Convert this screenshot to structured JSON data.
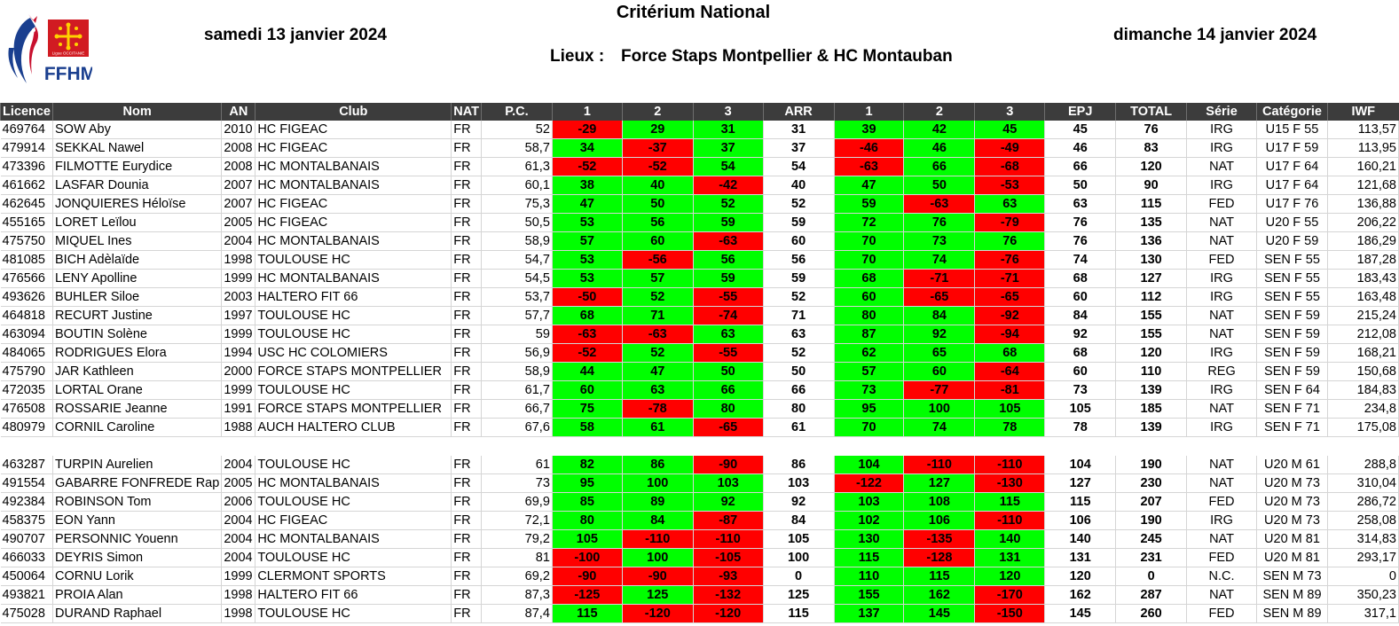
{
  "header": {
    "title": "Critérium National",
    "date_day1": "samedi 13 janvier 2024",
    "date_day2": "dimanche 14 janvier 2024",
    "lieux_label": "Lieux :",
    "lieux_value": "Force Staps Montpellier & HC Montauban",
    "logo_text": "FFHM",
    "logo_sub": "Ligue OCCITANIE"
  },
  "colors": {
    "success": "#00ff00",
    "fail": "#ff0000",
    "header_bg": "#3c3c3c"
  },
  "columns": [
    "Licence",
    "Nom",
    "AN",
    "Club",
    "NAT",
    "P.C.",
    "1",
    "2",
    "3",
    "ARR",
    "1",
    "2",
    "3",
    "EPJ",
    "TOTAL",
    "Série",
    "Catégorie",
    "IWF"
  ],
  "women": [
    {
      "lic": "469764",
      "nom": "SOW Aby",
      "an": "2010",
      "club": "HC FIGEAC",
      "nat": "FR",
      "pc": "52",
      "a1": "-29",
      "a2": "29",
      "a3": "31",
      "arr": "31",
      "e1": "39",
      "e2": "42",
      "e3": "45",
      "epj": "45",
      "total": "76",
      "serie": "IRG",
      "cat": "U15 F 55",
      "iwf": "113,57"
    },
    {
      "lic": "479914",
      "nom": "SEKKAL Nawel",
      "an": "2008",
      "club": "HC FIGEAC",
      "nat": "FR",
      "pc": "58,7",
      "a1": "34",
      "a2": "-37",
      "a3": "37",
      "arr": "37",
      "e1": "-46",
      "e2": "46",
      "e3": "-49",
      "epj": "46",
      "total": "83",
      "serie": "IRG",
      "cat": "U17 F 59",
      "iwf": "113,95"
    },
    {
      "lic": "473396",
      "nom": "FILMOTTE Eurydice",
      "an": "2008",
      "club": "HC MONTALBANAIS",
      "nat": "FR",
      "pc": "61,3",
      "a1": "-52",
      "a2": "-52",
      "a3": "54",
      "arr": "54",
      "e1": "-63",
      "e2": "66",
      "e3": "-68",
      "epj": "66",
      "total": "120",
      "serie": "NAT",
      "cat": "U17 F 64",
      "iwf": "160,21"
    },
    {
      "lic": "461662",
      "nom": "LASFAR Dounia",
      "an": "2007",
      "club": "HC MONTALBANAIS",
      "nat": "FR",
      "pc": "60,1",
      "a1": "38",
      "a2": "40",
      "a3": "-42",
      "arr": "40",
      "e1": "47",
      "e2": "50",
      "e3": "-53",
      "epj": "50",
      "total": "90",
      "serie": "IRG",
      "cat": "U17 F 64",
      "iwf": "121,68"
    },
    {
      "lic": "462645",
      "nom": "JONQUIERES Héloïse",
      "an": "2007",
      "club": "HC FIGEAC",
      "nat": "FR",
      "pc": "75,3",
      "a1": "47",
      "a2": "50",
      "a3": "52",
      "arr": "52",
      "e1": "59",
      "e2": "-63",
      "e3": "63",
      "epj": "63",
      "total": "115",
      "serie": "FED",
      "cat": "U17 F 76",
      "iwf": "136,88"
    },
    {
      "lic": "455165",
      "nom": "LORET Leïlou",
      "an": "2005",
      "club": "HC FIGEAC",
      "nat": "FR",
      "pc": "50,5",
      "a1": "53",
      "a2": "56",
      "a3": "59",
      "arr": "59",
      "e1": "72",
      "e2": "76",
      "e3": "-79",
      "epj": "76",
      "total": "135",
      "serie": "NAT",
      "cat": "U20 F 55",
      "iwf": "206,22"
    },
    {
      "lic": "475750",
      "nom": "MIQUEL Ines",
      "an": "2004",
      "club": "HC MONTALBANAIS",
      "nat": "FR",
      "pc": "58,9",
      "a1": "57",
      "a2": "60",
      "a3": "-63",
      "arr": "60",
      "e1": "70",
      "e2": "73",
      "e3": "76",
      "epj": "76",
      "total": "136",
      "serie": "NAT",
      "cat": "U20 F 59",
      "iwf": "186,29"
    },
    {
      "lic": "481085",
      "nom": "BICH Adèlaïde",
      "an": "1998",
      "club": "TOULOUSE HC",
      "nat": "FR",
      "pc": "54,7",
      "a1": "53",
      "a2": "-56",
      "a3": "56",
      "arr": "56",
      "e1": "70",
      "e2": "74",
      "e3": "-76",
      "epj": "74",
      "total": "130",
      "serie": "FED",
      "cat": "SEN F 55",
      "iwf": "187,28"
    },
    {
      "lic": "476566",
      "nom": "LENY Apolline",
      "an": "1999",
      "club": "HC MONTALBANAIS",
      "nat": "FR",
      "pc": "54,5",
      "a1": "53",
      "a2": "57",
      "a3": "59",
      "arr": "59",
      "e1": "68",
      "e2": "-71",
      "e3": "-71",
      "epj": "68",
      "total": "127",
      "serie": "IRG",
      "cat": "SEN F 55",
      "iwf": "183,43"
    },
    {
      "lic": "493626",
      "nom": "BUHLER Siloe",
      "an": "2003",
      "club": "HALTERO FIT 66",
      "nat": "FR",
      "pc": "53,7",
      "a1": "-50",
      "a2": "52",
      "a3": "-55",
      "arr": "52",
      "e1": "60",
      "e2": "-65",
      "e3": "-65",
      "epj": "60",
      "total": "112",
      "serie": "IRG",
      "cat": "SEN F 55",
      "iwf": "163,48"
    },
    {
      "lic": "464818",
      "nom": "RECURT Justine",
      "an": "1997",
      "club": "TOULOUSE HC",
      "nat": "FR",
      "pc": "57,7",
      "a1": "68",
      "a2": "71",
      "a3": "-74",
      "arr": "71",
      "e1": "80",
      "e2": "84",
      "e3": "-92",
      "epj": "84",
      "total": "155",
      "serie": "NAT",
      "cat": "SEN F 59",
      "iwf": "215,24"
    },
    {
      "lic": "463094",
      "nom": "BOUTIN Solène",
      "an": "1999",
      "club": "TOULOUSE HC",
      "nat": "FR",
      "pc": "59",
      "a1": "-63",
      "a2": "-63",
      "a3": "63",
      "arr": "63",
      "e1": "87",
      "e2": "92",
      "e3": "-94",
      "epj": "92",
      "total": "155",
      "serie": "NAT",
      "cat": "SEN F 59",
      "iwf": "212,08"
    },
    {
      "lic": "484065",
      "nom": "RODRIGUES Elora",
      "an": "1994",
      "club": "USC HC COLOMIERS",
      "nat": "FR",
      "pc": "56,9",
      "a1": "-52",
      "a2": "52",
      "a3": "-55",
      "arr": "52",
      "e1": "62",
      "e2": "65",
      "e3": "68",
      "epj": "68",
      "total": "120",
      "serie": "IRG",
      "cat": "SEN F 59",
      "iwf": "168,21"
    },
    {
      "lic": "475790",
      "nom": "JAR Kathleen",
      "an": "2000",
      "club": "FORCE STAPS MONTPELLIER",
      "nat": "FR",
      "pc": "58,9",
      "a1": "44",
      "a2": "47",
      "a3": "50",
      "arr": "50",
      "e1": "57",
      "e2": "60",
      "e3": "-64",
      "epj": "60",
      "total": "110",
      "serie": "REG",
      "cat": "SEN F 59",
      "iwf": "150,68"
    },
    {
      "lic": "472035",
      "nom": "LORTAL Orane",
      "an": "1999",
      "club": "TOULOUSE HC",
      "nat": "FR",
      "pc": "61,7",
      "a1": "60",
      "a2": "63",
      "a3": "66",
      "arr": "66",
      "e1": "73",
      "e2": "-77",
      "e3": "-81",
      "epj": "73",
      "total": "139",
      "serie": "IRG",
      "cat": "SEN F 64",
      "iwf": "184,83"
    },
    {
      "lic": "476508",
      "nom": "ROSSARIE Jeanne",
      "an": "1991",
      "club": "FORCE STAPS MONTPELLIER",
      "nat": "FR",
      "pc": "66,7",
      "a1": "75",
      "a2": "-78",
      "a3": "80",
      "arr": "80",
      "e1": "95",
      "e2": "100",
      "e3": "105",
      "epj": "105",
      "total": "185",
      "serie": "NAT",
      "cat": "SEN F 71",
      "iwf": "234,8"
    },
    {
      "lic": "480979",
      "nom": "CORNIL Caroline",
      "an": "1988",
      "club": "AUCH HALTERO CLUB",
      "nat": "FR",
      "pc": "67,6",
      "a1": "58",
      "a2": "61",
      "a3": "-65",
      "arr": "61",
      "e1": "70",
      "e2": "74",
      "e3": "78",
      "epj": "78",
      "total": "139",
      "serie": "IRG",
      "cat": "SEN F 71",
      "iwf": "175,08"
    }
  ],
  "men": [
    {
      "lic": "463287",
      "nom": "TURPIN Aurelien",
      "an": "2004",
      "club": "TOULOUSE HC",
      "nat": "FR",
      "pc": "61",
      "a1": "82",
      "a2": "86",
      "a3": "-90",
      "arr": "86",
      "e1": "104",
      "e2": "-110",
      "e3": "-110",
      "epj": "104",
      "total": "190",
      "serie": "NAT",
      "cat": "U20 M 61",
      "iwf": "288,8"
    },
    {
      "lic": "491554",
      "nom": "GABARRE FONFREDE Rap",
      "an": "2005",
      "club": "HC MONTALBANAIS",
      "nat": "FR",
      "pc": "73",
      "a1": "95",
      "a2": "100",
      "a3": "103",
      "arr": "103",
      "e1": "-122",
      "e2": "127",
      "e3": "-130",
      "epj": "127",
      "total": "230",
      "serie": "NAT",
      "cat": "U20 M 73",
      "iwf": "310,04"
    },
    {
      "lic": "492384",
      "nom": "ROBINSON Tom",
      "an": "2006",
      "club": "TOULOUSE HC",
      "nat": "FR",
      "pc": "69,9",
      "a1": "85",
      "a2": "89",
      "a3": "92",
      "arr": "92",
      "e1": "103",
      "e2": "108",
      "e3": "115",
      "epj": "115",
      "total": "207",
      "serie": "FED",
      "cat": "U20 M 73",
      "iwf": "286,72"
    },
    {
      "lic": "458375",
      "nom": "EON Yann",
      "an": "2004",
      "club": "HC FIGEAC",
      "nat": "FR",
      "pc": "72,1",
      "a1": "80",
      "a2": "84",
      "a3": "-87",
      "arr": "84",
      "e1": "102",
      "e2": "106",
      "e3": "-110",
      "epj": "106",
      "total": "190",
      "serie": "IRG",
      "cat": "U20 M 73",
      "iwf": "258,08"
    },
    {
      "lic": "490707",
      "nom": "PERSONNIC Youenn",
      "an": "2004",
      "club": "HC MONTALBANAIS",
      "nat": "FR",
      "pc": "79,2",
      "a1": "105",
      "a2": "-110",
      "a3": "-110",
      "arr": "105",
      "e1": "130",
      "e2": "-135",
      "e3": "140",
      "epj": "140",
      "total": "245",
      "serie": "NAT",
      "cat": "U20 M 81",
      "iwf": "314,83"
    },
    {
      "lic": "466033",
      "nom": "DEYRIS Simon",
      "an": "2004",
      "club": "TOULOUSE HC",
      "nat": "FR",
      "pc": "81",
      "a1": "-100",
      "a2": "100",
      "a3": "-105",
      "arr": "100",
      "e1": "115",
      "e2": "-128",
      "e3": "131",
      "epj": "131",
      "total": "231",
      "serie": "FED",
      "cat": "U20 M 81",
      "iwf": "293,17"
    },
    {
      "lic": "450064",
      "nom": "CORNU Lorik",
      "an": "1999",
      "club": "CLERMONT SPORTS",
      "nat": "FR",
      "pc": "69,2",
      "a1": "-90",
      "a2": "-90",
      "a3": "-93",
      "arr": "0",
      "e1": "110",
      "e2": "115",
      "e3": "120",
      "epj": "120",
      "total": "0",
      "serie": "N.C.",
      "cat": "SEN M 73",
      "iwf": "0"
    },
    {
      "lic": "493821",
      "nom": "PROIA Alan",
      "an": "1998",
      "club": "HALTERO FIT 66",
      "nat": "FR",
      "pc": "87,3",
      "a1": "-125",
      "a2": "125",
      "a3": "-132",
      "arr": "125",
      "e1": "155",
      "e2": "162",
      "e3": "-170",
      "epj": "162",
      "total": "287",
      "serie": "NAT",
      "cat": "SEN M 89",
      "iwf": "350,23"
    },
    {
      "lic": "475028",
      "nom": "DURAND Raphael",
      "an": "1998",
      "club": "TOULOUSE HC",
      "nat": "FR",
      "pc": "87,4",
      "a1": "115",
      "a2": "-120",
      "a3": "-120",
      "arr": "115",
      "e1": "137",
      "e2": "145",
      "e3": "-150",
      "epj": "145",
      "total": "260",
      "serie": "FED",
      "cat": "SEN M 89",
      "iwf": "317,1"
    }
  ]
}
